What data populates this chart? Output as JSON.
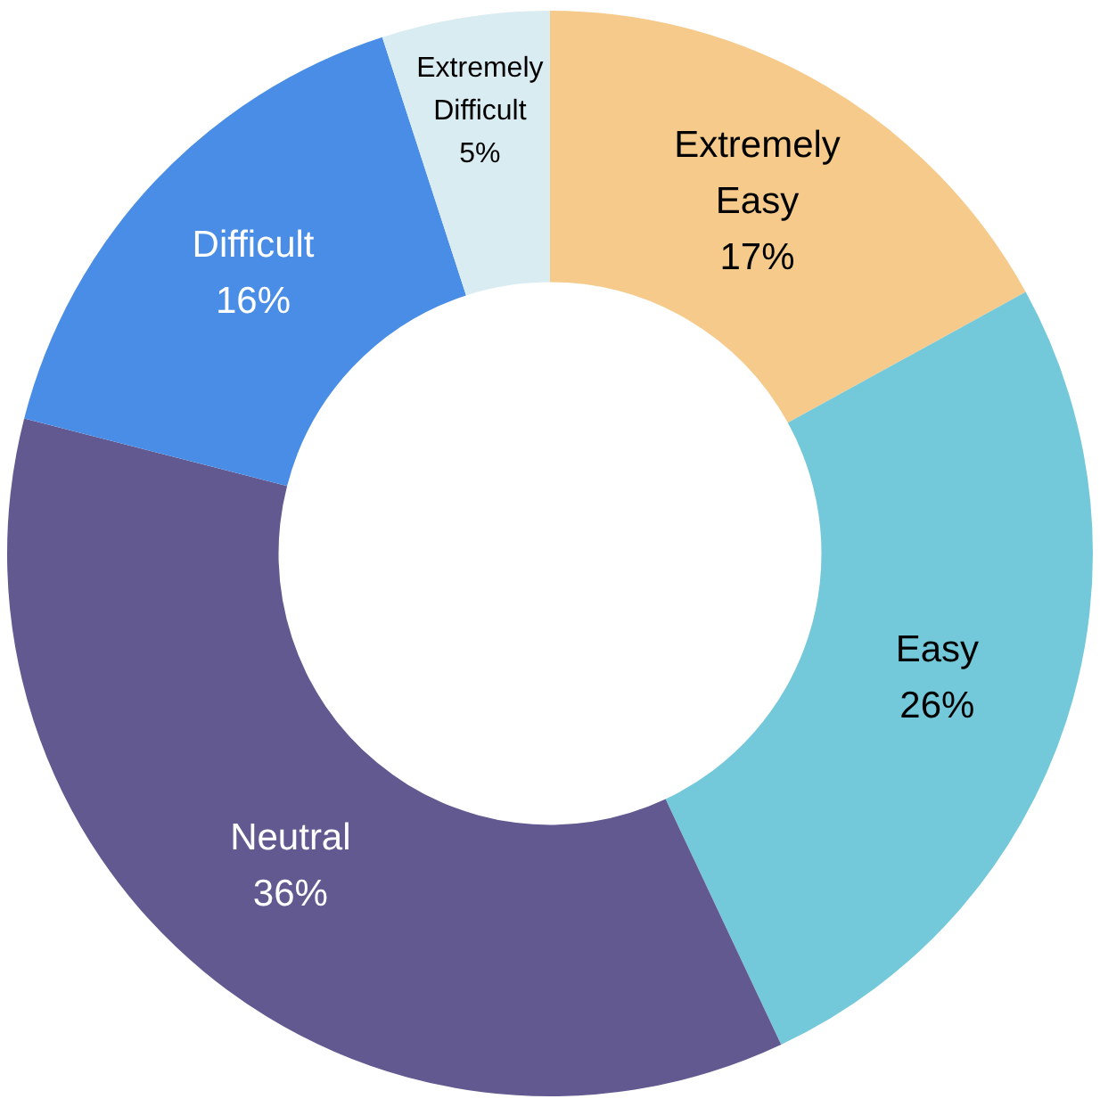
{
  "chart_data": {
    "type": "donut",
    "categories": [
      "Extremely Easy",
      "Easy",
      "Neutral",
      "Difficult",
      "Extremely Difficult"
    ],
    "values": [
      17,
      26,
      36,
      16,
      5
    ],
    "value_labels": [
      "17%",
      "26%",
      "36%",
      "16%",
      "5%"
    ],
    "colors": [
      "#f5ca8a",
      "#73c9d9",
      "#625990",
      "#4a8de6",
      "#d9ecf1"
    ],
    "legend": false
  }
}
